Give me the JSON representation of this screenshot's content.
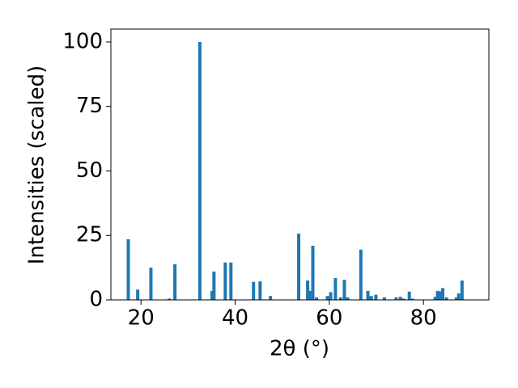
{
  "chart_data": {
    "type": "bar",
    "x_label": "2θ (°)",
    "y_label": "Intensities (scaled)",
    "x": [
      17.3,
      19.3,
      22.1,
      26.0,
      27.2,
      32.5,
      35.1,
      35.5,
      37.9,
      39.1,
      43.9,
      45.3,
      47.5,
      53.5,
      55.4,
      55.8,
      56.5,
      57.3,
      59.6,
      60.3,
      61.3,
      62.4,
      63.2,
      63.9,
      66.7,
      68.2,
      68.9,
      69.9,
      71.7,
      74.2,
      75.1,
      75.8,
      77.0,
      77.7,
      82.5,
      83.0,
      83.6,
      84.1,
      84.9,
      87.0,
      87.5,
      88.2
    ],
    "values": [
      23.5,
      4,
      12.5,
      0.5,
      13.8,
      100,
      3.5,
      11,
      14.5,
      14.5,
      7,
      7.2,
      1.5,
      25.7,
      7.5,
      3.5,
      21,
      1,
      1.5,
      3,
      8.5,
      1,
      7.8,
      1,
      19.5,
      3.5,
      1.5,
      2,
      1,
      1,
      1.2,
      0.5,
      3.2,
      0.5,
      1.2,
      3.5,
      3.3,
      4.6,
      1,
      1,
      2.5,
      7.5
    ],
    "color": "#1f77b4",
    "xlim": [
      13.6,
      93.9
    ],
    "xticks": [
      20,
      40,
      60,
      80
    ],
    "ylim": [
      0,
      105
    ],
    "yticks": [
      0,
      25,
      50,
      75,
      100
    ]
  }
}
